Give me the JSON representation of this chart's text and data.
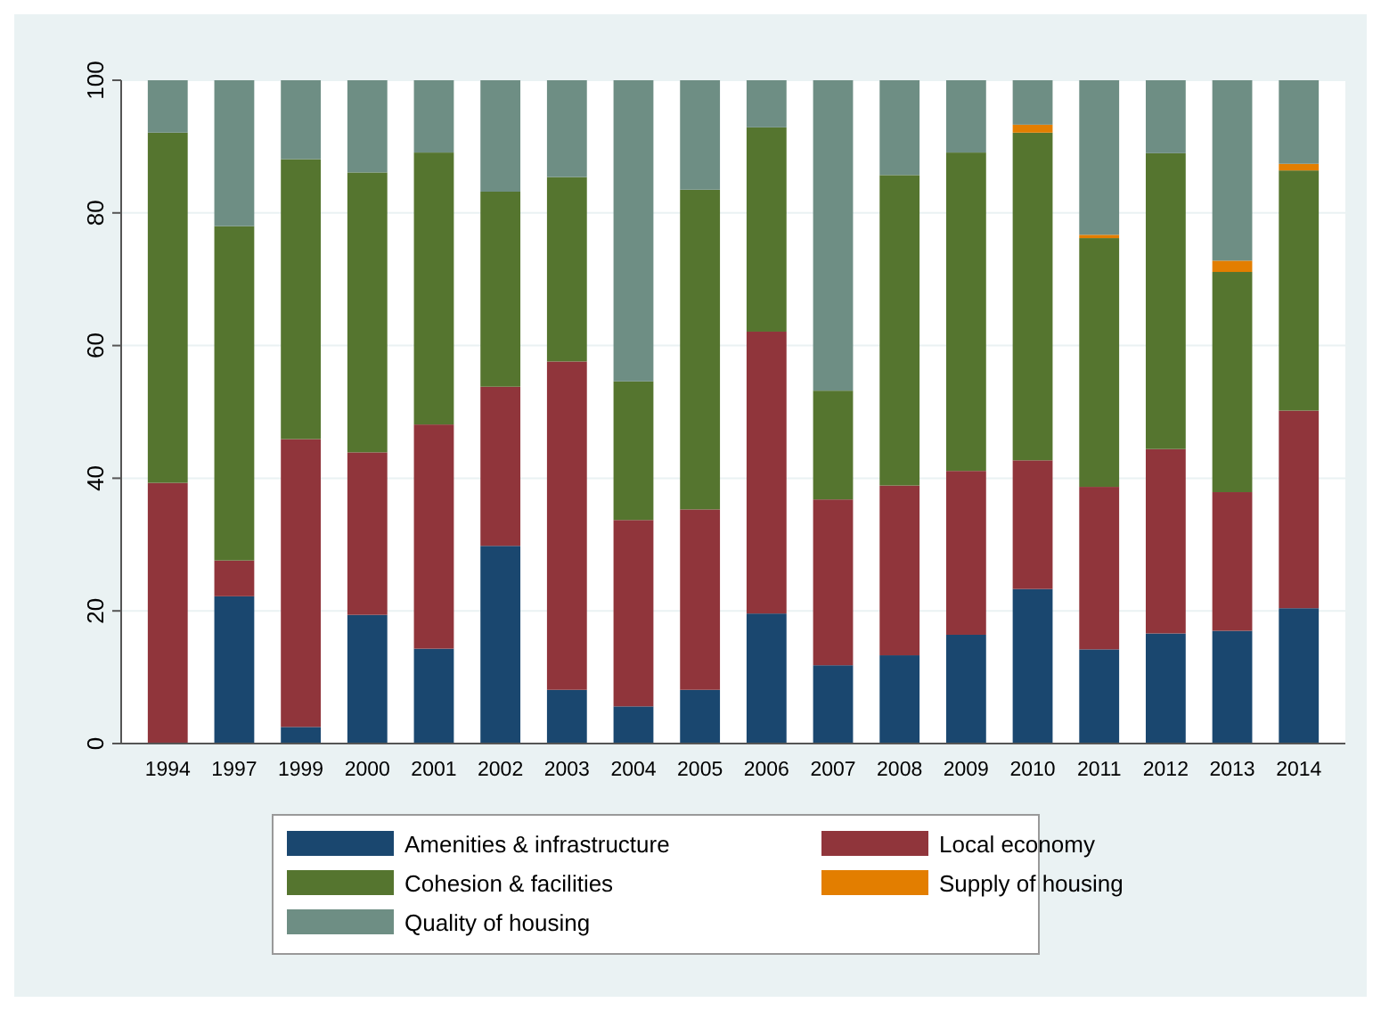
{
  "chart_data": {
    "type": "bar",
    "stacked": true,
    "categories": [
      "1994",
      "1997",
      "1999",
      "2000",
      "2001",
      "2002",
      "2003",
      "2004",
      "2005",
      "2006",
      "2007",
      "2008",
      "2009",
      "2010",
      "2011",
      "2012",
      "2013",
      "2014"
    ],
    "series": [
      {
        "name": "Amenities & infrastructure",
        "color": "#1a476f",
        "values": [
          0,
          22.2,
          2.5,
          19.4,
          14.3,
          29.8,
          8.1,
          5.6,
          8.1,
          19.6,
          11.8,
          13.3,
          16.4,
          23.3,
          14.2,
          16.6,
          17.0,
          20.4
        ]
      },
      {
        "name": "Local economy",
        "color": "#90353b",
        "values": [
          39.3,
          5.4,
          43.4,
          24.5,
          33.8,
          24.0,
          49.5,
          28.1,
          27.2,
          42.5,
          25.0,
          25.6,
          24.7,
          19.4,
          24.5,
          27.8,
          20.9,
          29.8
        ]
      },
      {
        "name": "Cohesion & facilities",
        "color": "#55752f",
        "values": [
          52.8,
          50.4,
          42.2,
          42.2,
          41.0,
          29.4,
          27.8,
          20.9,
          48.2,
          30.8,
          16.4,
          46.8,
          48.0,
          49.4,
          37.5,
          44.6,
          33.2,
          36.2
        ]
      },
      {
        "name": "Supply of housing",
        "color": "#e37e00",
        "values": [
          0,
          0,
          0,
          0,
          0,
          0,
          0,
          0,
          0,
          0,
          0,
          0,
          0,
          1.2,
          0.5,
          0,
          1.7,
          1.0
        ]
      },
      {
        "name": "Quality of housing",
        "color": "#6e8e84",
        "values": [
          7.9,
          22.0,
          11.9,
          13.9,
          10.9,
          16.8,
          14.6,
          45.4,
          16.5,
          7.1,
          46.8,
          14.3,
          10.9,
          6.7,
          23.3,
          11.0,
          27.2,
          12.6
        ]
      }
    ],
    "ylim": [
      0,
      100
    ],
    "yticks": [
      0,
      20,
      40,
      60,
      80,
      100
    ],
    "grid": "y",
    "legend": "bottom"
  }
}
